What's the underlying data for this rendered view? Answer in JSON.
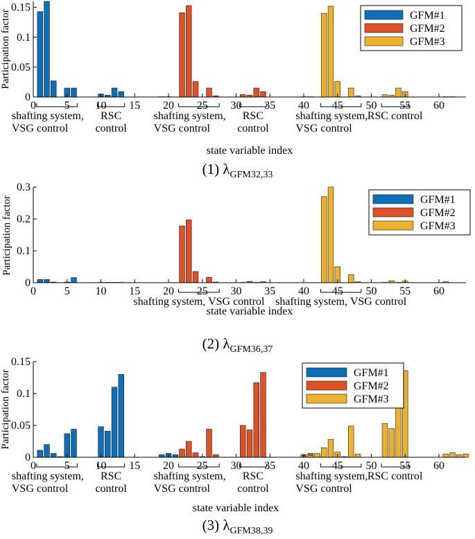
{
  "colors": {
    "GFM#1": "#0e6eb8",
    "GFM#2": "#dd5127",
    "GFM#3": "#ecb12f"
  },
  "captions": [
    {
      "num": "(1) ",
      "lambda": "λ",
      "sub": "GFM32,33"
    },
    {
      "num": "(2) ",
      "lambda": "λ",
      "sub": "GFM36,37"
    },
    {
      "num": "(3) ",
      "lambda": "λ",
      "sub": "GFM38,39"
    }
  ],
  "chart_data": [
    {
      "type": "bar",
      "ylabel": "Participation factor",
      "xlabel": "state variable index",
      "xlim": [
        0,
        64
      ],
      "ylim": [
        0,
        0.16
      ],
      "xticks": [
        0,
        5,
        10,
        15,
        20,
        25,
        30,
        35,
        40,
        45,
        50,
        55,
        60
      ],
      "yticks": [
        {
          "v": 0,
          "label": "0"
        },
        {
          "v": 0.05,
          "label": "0.05"
        },
        {
          "v": 0.1,
          "label": "0.1"
        },
        {
          "v": 0.15,
          "label": "0.15"
        }
      ],
      "legend": {
        "position": "top-right",
        "entries": [
          "GFM#1",
          "GFM#2",
          "GFM#3"
        ]
      },
      "groups": [
        {
          "label": "shafting system,\nVSG control",
          "from": 1,
          "to": 6
        },
        {
          "label": "RSC\ncontrol",
          "from": 10,
          "to": 13
        },
        {
          "label": "shafting system,\nVSG control",
          "from": 22,
          "to": 27
        },
        {
          "label": "RSC\ncontrol",
          "from": 31,
          "to": 34
        },
        {
          "label": "shafting system,\nVSG control",
          "from": 43,
          "to": 48
        },
        {
          "label": "RSC control",
          "from": 52,
          "to": 55
        }
      ],
      "series": [
        {
          "name": "GFM#1",
          "x": [
            1,
            2,
            3,
            5,
            6,
            10,
            11,
            12,
            13,
            19,
            20
          ],
          "values": [
            0.143,
            0.16,
            0.027,
            0.015,
            0.015,
            0.005,
            0.003,
            0.015,
            0.009,
            0.0005,
            0.0005
          ]
        },
        {
          "name": "GFM#2",
          "x": [
            22,
            23,
            24,
            26,
            27,
            31,
            32,
            33,
            34,
            40,
            41
          ],
          "values": [
            0.141,
            0.153,
            0.026,
            0.015,
            0.002,
            0.004,
            0.003,
            0.015,
            0.009,
            0.0005,
            0.0005
          ]
        },
        {
          "name": "GFM#3",
          "x": [
            43,
            44,
            45,
            47,
            48,
            52,
            53,
            54,
            55,
            61,
            62
          ],
          "values": [
            0.14,
            0.152,
            0.026,
            0.015,
            0.002,
            0.004,
            0.003,
            0.015,
            0.009,
            0.0005,
            0.0005
          ]
        }
      ]
    },
    {
      "type": "bar",
      "ylabel": "Participation factor",
      "xlabel": "state variable index",
      "xlim": [
        0,
        64
      ],
      "ylim": [
        0,
        0.3
      ],
      "xticks": [
        0,
        5,
        10,
        15,
        20,
        25,
        30,
        35,
        40,
        45,
        50,
        55,
        60
      ],
      "yticks": [
        {
          "v": 0,
          "label": "0"
        },
        {
          "v": 0.1,
          "label": "0.1"
        },
        {
          "v": 0.2,
          "label": "0.2"
        },
        {
          "v": 0.3,
          "label": "0.3"
        }
      ],
      "legend": {
        "position": "top-right",
        "entries": [
          "GFM#1",
          "GFM#2",
          "GFM#3"
        ]
      },
      "groups": [
        {
          "label": "shafting system, VSG control",
          "from": 22,
          "to": 27
        },
        {
          "label": "shafting system, VSG control",
          "from": 43,
          "to": 48
        }
      ],
      "series": [
        {
          "name": "GFM#1",
          "x": [
            1,
            2,
            3,
            5,
            6,
            10,
            11,
            12,
            13
          ],
          "values": [
            0.01,
            0.01,
            0.002,
            0.002,
            0.016,
            0.001,
            0.001,
            0.001,
            0.001
          ]
        },
        {
          "name": "GFM#2",
          "x": [
            22,
            23,
            24,
            26,
            27,
            31,
            32,
            33,
            34
          ],
          "values": [
            0.178,
            0.197,
            0.035,
            0.017,
            0.002,
            0.001,
            0.004,
            0.001,
            0.003
          ]
        },
        {
          "name": "GFM#3",
          "x": [
            43,
            44,
            45,
            47,
            48,
            52,
            53,
            54,
            55,
            61
          ],
          "values": [
            0.27,
            0.3,
            0.05,
            0.025,
            0.003,
            0.001,
            0.006,
            0.001,
            0.005,
            0.003
          ]
        }
      ]
    },
    {
      "type": "bar",
      "ylabel": "Participation factor",
      "xlabel": "state variable index",
      "xlim": [
        0,
        64
      ],
      "ylim": [
        0,
        0.15
      ],
      "xticks": [
        0,
        5,
        10,
        15,
        20,
        25,
        30,
        35,
        40,
        45,
        50,
        55,
        60
      ],
      "yticks": [
        {
          "v": 0,
          "label": "0"
        },
        {
          "v": 0.05,
          "label": "0.05"
        },
        {
          "v": 0.1,
          "label": "0.1"
        },
        {
          "v": 0.15,
          "label": "0.15"
        }
      ],
      "legend": {
        "position": "top-center",
        "entries": [
          "GFM#1",
          "GFM#2",
          "GFM#3"
        ]
      },
      "groups": [
        {
          "label": "shafting system,\nVSG control",
          "from": 1,
          "to": 6
        },
        {
          "label": "RSC\ncontrol",
          "from": 10,
          "to": 13
        },
        {
          "label": "shafting system,\nVSG control",
          "from": 22,
          "to": 27
        },
        {
          "label": "RSC\ncontrol",
          "from": 31,
          "to": 34
        },
        {
          "label": "shafting system,\nVSG control",
          "from": 43,
          "to": 48
        },
        {
          "label": "RSC control",
          "from": 52,
          "to": 55
        }
      ],
      "series": [
        {
          "name": "GFM#1",
          "x": [
            1,
            2,
            3,
            4,
            5,
            6,
            10,
            11,
            12,
            13,
            19,
            20,
            21,
            22,
            23,
            24
          ],
          "values": [
            0.011,
            0.02,
            0.006,
            0.001,
            0.037,
            0.044,
            0.048,
            0.041,
            0.11,
            0.13,
            0.004,
            0.006,
            0.004,
            0.005,
            0.002,
            0.003
          ]
        },
        {
          "name": "GFM#2",
          "x": [
            22,
            23,
            24,
            25,
            26,
            27,
            31,
            32,
            33,
            34,
            40,
            41,
            42
          ],
          "values": [
            0.013,
            0.025,
            0.007,
            0.001,
            0.044,
            0.004,
            0.05,
            0.043,
            0.117,
            0.133,
            0.004,
            0.006,
            0.004
          ]
        },
        {
          "name": "GFM#3",
          "x": [
            40,
            41,
            42,
            43,
            44,
            45,
            46,
            47,
            48,
            52,
            53,
            54,
            55,
            61,
            62,
            63,
            64
          ],
          "values": [
            0.002,
            0.003,
            0.006,
            0.015,
            0.028,
            0.008,
            0.001,
            0.049,
            0.005,
            0.053,
            0.045,
            0.123,
            0.136,
            0.005,
            0.007,
            0.004,
            0.005
          ]
        }
      ]
    }
  ]
}
